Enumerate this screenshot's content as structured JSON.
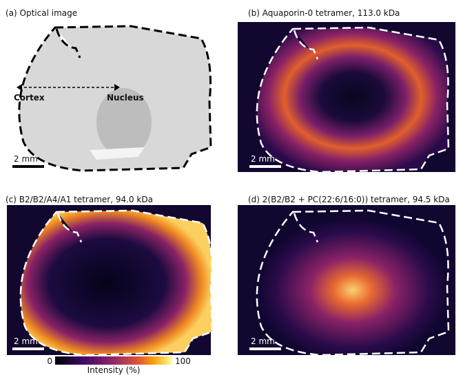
{
  "panels": [
    {
      "label": "(a) Optical image",
      "scale_bar": "2 mm",
      "annotations": [
        "Cortex",
        "Nucleus"
      ]
    },
    {
      "label": "(b) Aquaporin-0 tetramer, 113.0 kDa",
      "scale_bar": "2 mm"
    },
    {
      "label": "(c) B2/B2/A4/A1 tetramer, 94.0 kDa",
      "scale_bar": "2 mm"
    },
    {
      "label": "(d) 2(B2/B2 + PC(22:6/16:0)) tetramer, 94.5 kDa",
      "scale_bar": "2 mm"
    }
  ],
  "colorbar": {
    "min": 0,
    "max": 100,
    "label": "Intensity (%)"
  }
}
